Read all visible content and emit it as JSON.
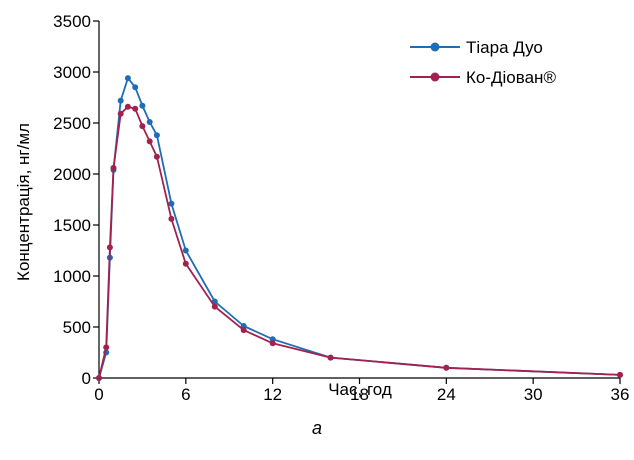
{
  "chart_data": {
    "type": "line",
    "title": "",
    "xlabel": "Час, год",
    "ylabel": "Концентрація, нг/мл",
    "panel_label": "а",
    "xlim": [
      0,
      36
    ],
    "ylim": [
      0,
      3500
    ],
    "xticks": [
      0,
      6,
      12,
      18,
      24,
      30,
      36
    ],
    "yticks": [
      0,
      500,
      1000,
      1500,
      2000,
      2500,
      3000,
      3500
    ],
    "grid": false,
    "legend_position": "top-right",
    "series": [
      {
        "name": "Тіара Дуо",
        "color": "#1f6db5",
        "marker": "circle",
        "x": [
          0,
          0.5,
          0.75,
          1,
          1.5,
          2,
          2.5,
          3,
          3.5,
          4,
          5,
          6,
          8,
          10,
          12,
          16,
          24,
          36
        ],
        "y": [
          0,
          250,
          1180,
          2040,
          2720,
          2940,
          2850,
          2670,
          2510,
          2380,
          1710,
          1250,
          750,
          510,
          380,
          200,
          100,
          30
        ]
      },
      {
        "name": "Ко-Діован®",
        "color": "#a3214f",
        "marker": "circle",
        "x": [
          0,
          0.5,
          0.75,
          1,
          1.5,
          2,
          2.5,
          3,
          3.5,
          4,
          5,
          6,
          8,
          10,
          12,
          16,
          24,
          36
        ],
        "y": [
          0,
          300,
          1280,
          2060,
          2590,
          2660,
          2640,
          2470,
          2320,
          2170,
          1560,
          1120,
          700,
          470,
          340,
          200,
          100,
          30
        ]
      }
    ]
  }
}
